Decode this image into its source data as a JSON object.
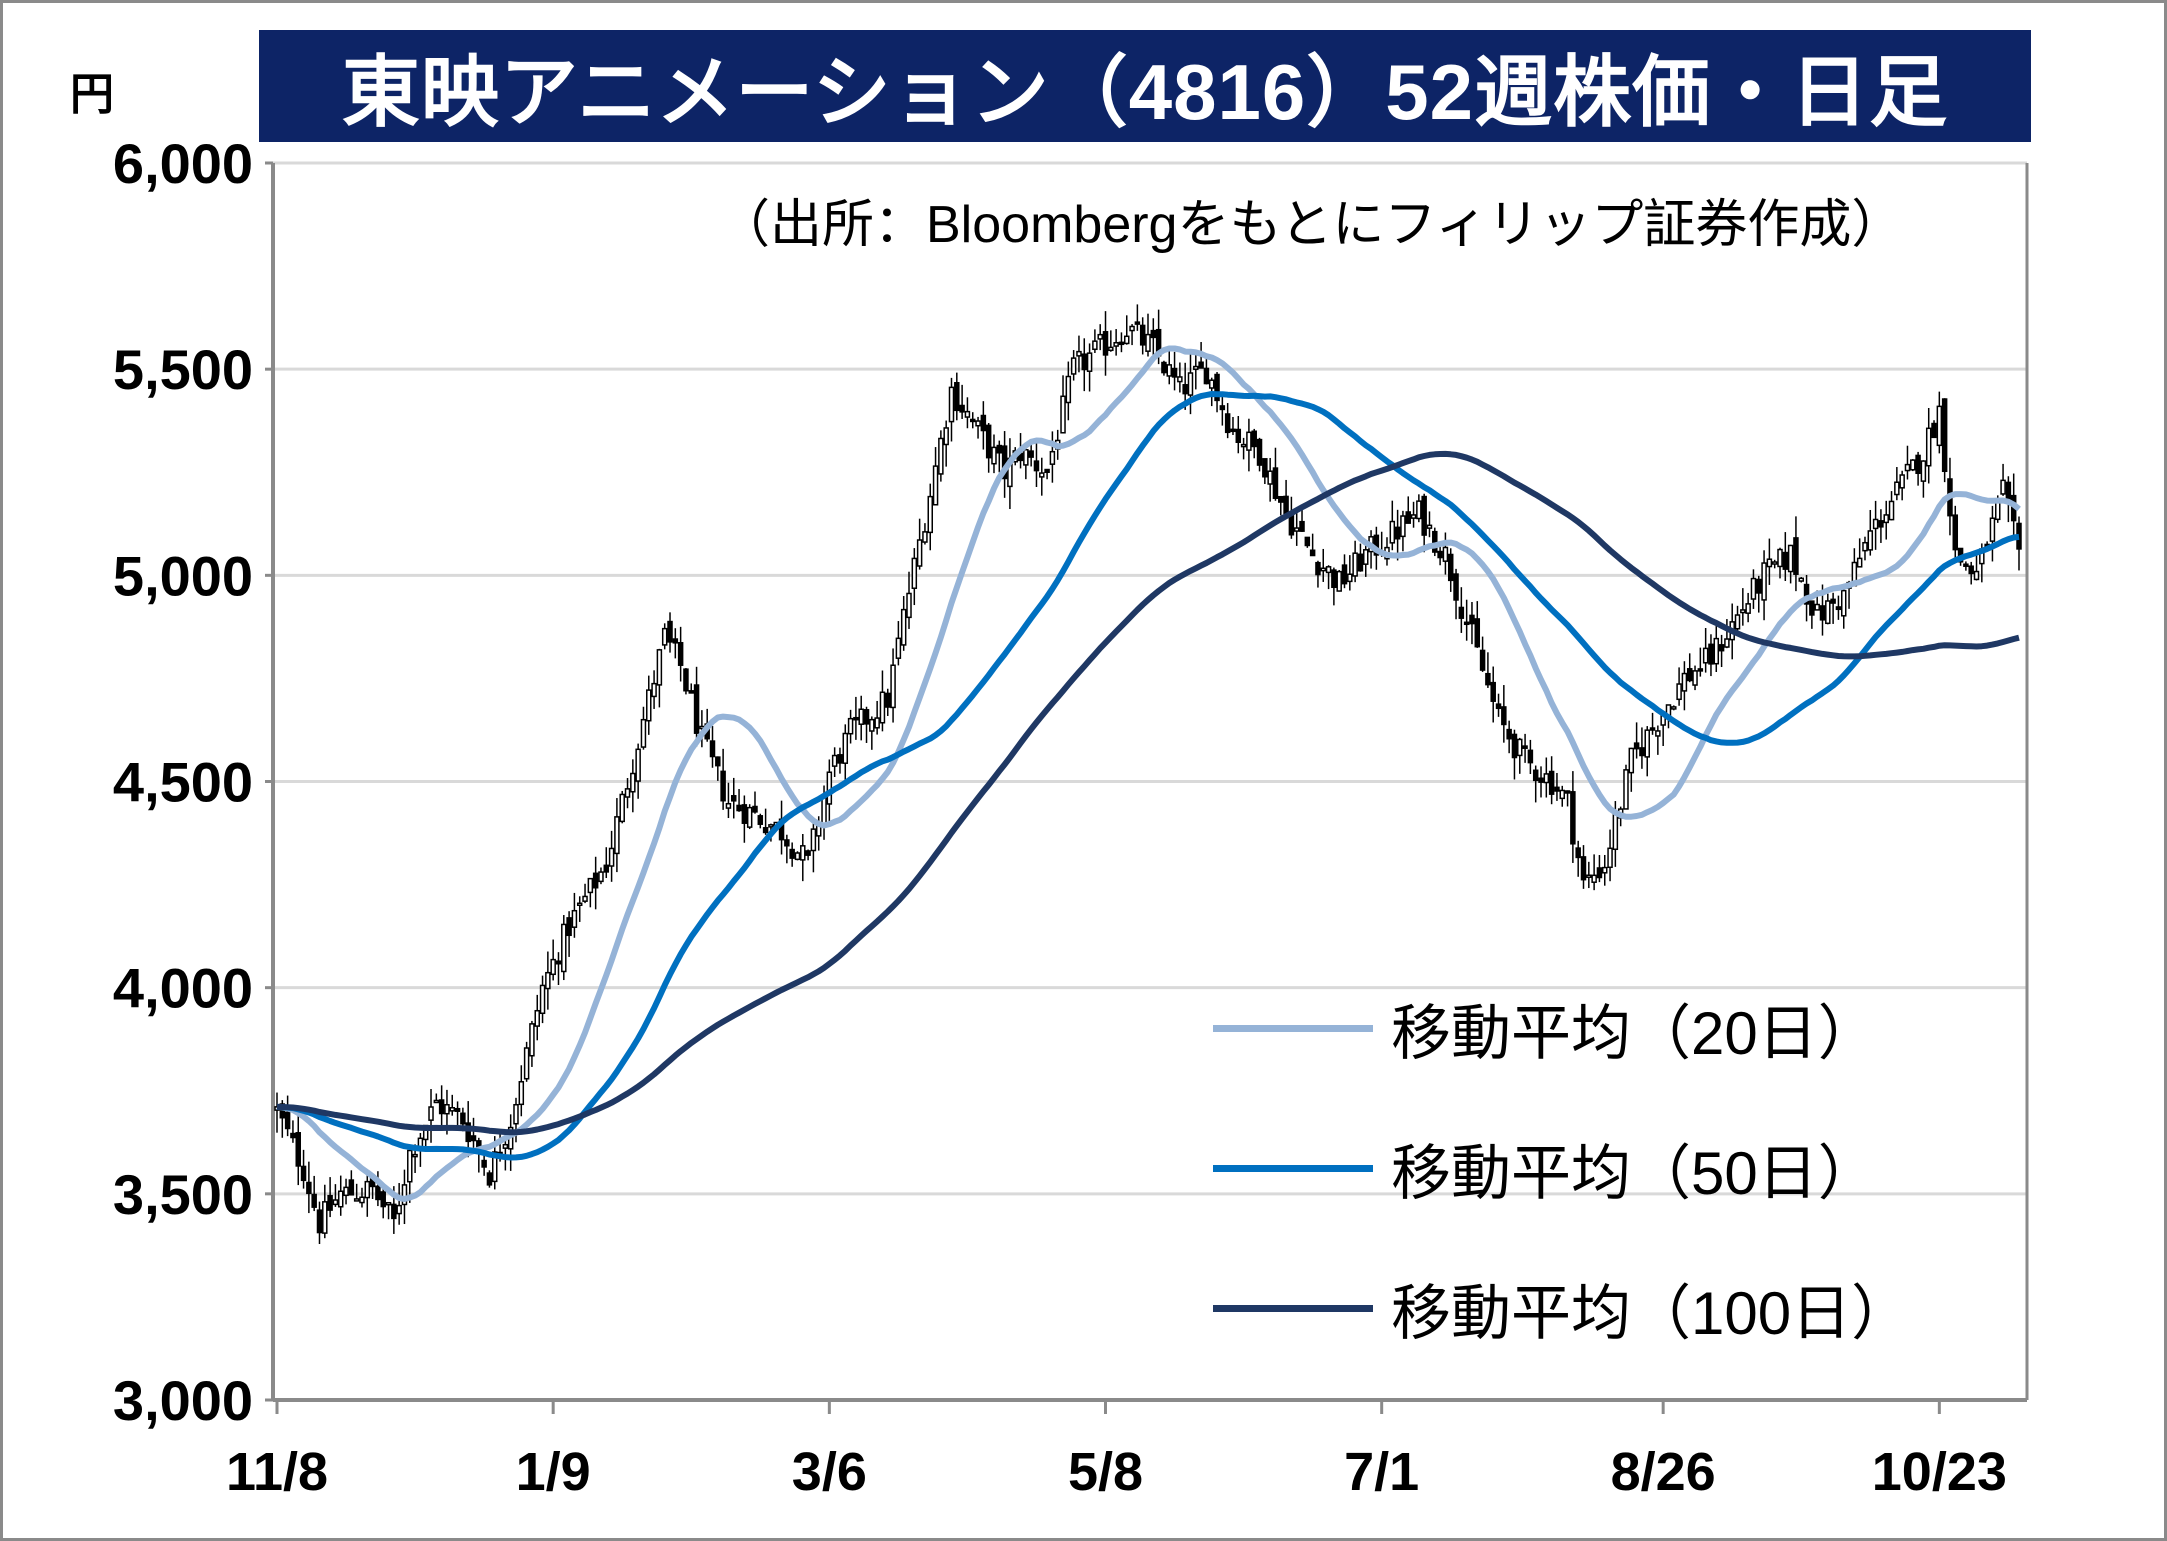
{
  "title": "東映アニメーション（4816）52週株価・日足",
  "unit": "円",
  "source_note": "（出所：Bloombergをもとにフィリップ証券作成）",
  "colors": {
    "title_bg": "#0d2466",
    "ma20": "#95b3d7",
    "ma50": "#0070c0",
    "ma100": "#1f3864",
    "candle": "#000000",
    "grid": "#d9d9d9",
    "axis": "#8a8a8a"
  },
  "chart_data": {
    "type": "candlestick",
    "title": "東映アニメーション（4816）52週株価・日足",
    "ylabel": "円",
    "ylim": [
      3000,
      6000
    ],
    "yticks": [
      "3,000",
      "3,500",
      "4,000",
      "4,500",
      "5,000",
      "5,500",
      "6,000"
    ],
    "xticks": [
      "11/8",
      "1/9",
      "3/6",
      "5/8",
      "7/1",
      "8/26",
      "10/23"
    ],
    "grid": true,
    "legend_placement": "center-right",
    "close_keypoints": [
      [
        0,
        3700
      ],
      [
        5,
        3560
      ],
      [
        8,
        3430
      ],
      [
        12,
        3500
      ],
      [
        18,
        3510
      ],
      [
        22,
        3430
      ],
      [
        25,
        3600
      ],
      [
        30,
        3720
      ],
      [
        35,
        3680
      ],
      [
        40,
        3550
      ],
      [
        44,
        3680
      ],
      [
        50,
        4000
      ],
      [
        55,
        4150
      ],
      [
        62,
        4300
      ],
      [
        68,
        4600
      ],
      [
        73,
        4850
      ],
      [
        76,
        4780
      ],
      [
        80,
        4600
      ],
      [
        85,
        4450
      ],
      [
        90,
        4420
      ],
      [
        95,
        4380
      ],
      [
        100,
        4300
      ],
      [
        104,
        4520
      ],
      [
        108,
        4620
      ],
      [
        115,
        4700
      ],
      [
        118,
        4900
      ],
      [
        123,
        5200
      ],
      [
        127,
        5450
      ],
      [
        132,
        5350
      ],
      [
        137,
        5250
      ],
      [
        140,
        5300
      ],
      [
        145,
        5250
      ],
      [
        150,
        5500
      ],
      [
        155,
        5550
      ],
      [
        160,
        5600
      ],
      [
        165,
        5550
      ],
      [
        170,
        5450
      ],
      [
        175,
        5500
      ],
      [
        180,
        5350
      ],
      [
        185,
        5300
      ],
      [
        190,
        5150
      ],
      [
        195,
        5050
      ],
      [
        200,
        4980
      ],
      [
        205,
        5050
      ],
      [
        210,
        5100
      ],
      [
        215,
        5150
      ],
      [
        220,
        5050
      ],
      [
        225,
        4850
      ],
      [
        230,
        4650
      ],
      [
        235,
        4550
      ],
      [
        240,
        4500
      ],
      [
        243,
        4450
      ],
      [
        246,
        4250
      ],
      [
        250,
        4300
      ],
      [
        255,
        4550
      ],
      [
        260,
        4650
      ],
      [
        265,
        4750
      ],
      [
        270,
        4800
      ],
      [
        275,
        4900
      ],
      [
        280,
        5000
      ],
      [
        285,
        5050
      ],
      [
        290,
        4900
      ],
      [
        295,
        4950
      ],
      [
        300,
        5100
      ],
      [
        305,
        5200
      ],
      [
        310,
        5300
      ],
      [
        313,
        5400
      ],
      [
        316,
        5050
      ],
      [
        320,
        5000
      ],
      [
        325,
        5200
      ],
      [
        328,
        5050
      ]
    ],
    "series": [
      {
        "name": "移動平均（20日）",
        "window": 20
      },
      {
        "name": "移動平均（50日）",
        "window": 50
      },
      {
        "name": "移動平均（100日）",
        "window": 100
      }
    ]
  },
  "legend": [
    {
      "label": "移動平均（20日）",
      "color": "#95b3d7"
    },
    {
      "label": "移動平均（50日）",
      "color": "#0070c0"
    },
    {
      "label": "移動平均（100日）",
      "color": "#1f3864"
    }
  ]
}
